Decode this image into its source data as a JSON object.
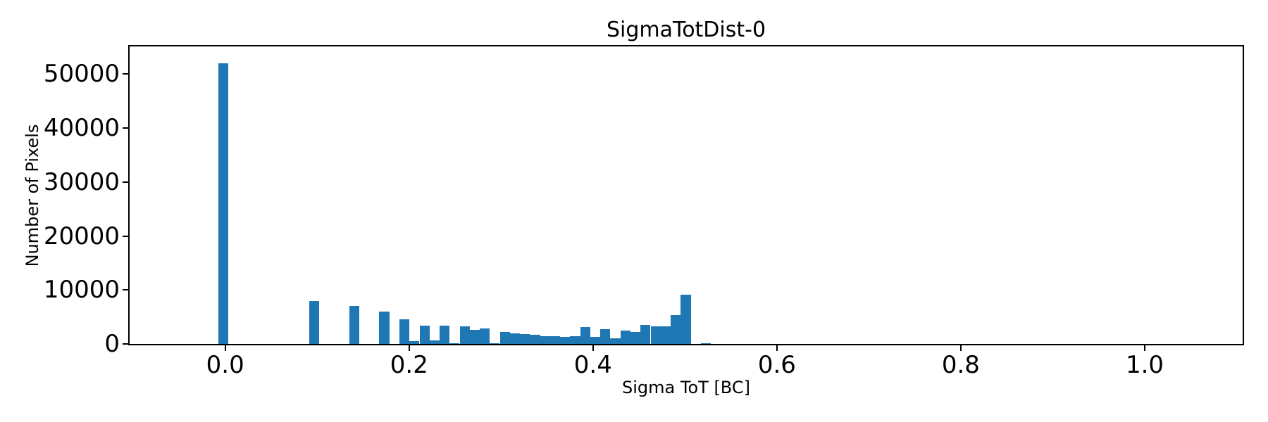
{
  "figure": {
    "title": "SigmaTotDist-0",
    "background_color": "#ffffff",
    "text_color": "#000000"
  },
  "chart_data": {
    "type": "bar",
    "subtype": "histogram",
    "title": "SigmaTotDist-0",
    "xlabel": "Sigma ToT [BC]",
    "ylabel": "Number of Pixels",
    "bar_color": "#1f77b4",
    "axis_color": "#000000",
    "grid": false,
    "legend": null,
    "bin_width": 0.0109,
    "xlim": [
      -0.104,
      1.1065
    ],
    "ylim": [
      0,
      55100
    ],
    "x_ticks": [
      {
        "value": 0.0,
        "label": "0.0"
      },
      {
        "value": 0.2,
        "label": "0.2"
      },
      {
        "value": 0.4,
        "label": "0.4"
      },
      {
        "value": 0.6,
        "label": "0.6"
      },
      {
        "value": 0.8,
        "label": "0.8"
      },
      {
        "value": 1.0,
        "label": "1.0"
      }
    ],
    "y_ticks": [
      {
        "value": 0,
        "label": "0"
      },
      {
        "value": 10000,
        "label": "10000"
      },
      {
        "value": 20000,
        "label": "20000"
      },
      {
        "value": 30000,
        "label": "30000"
      },
      {
        "value": 40000,
        "label": "40000"
      },
      {
        "value": 50000,
        "label": "50000"
      }
    ],
    "bins": [
      {
        "center": -0.002,
        "count": 52000
      },
      {
        "center": 0.0965,
        "count": 7900
      },
      {
        "center": 0.1402,
        "count": 7000
      },
      {
        "center": 0.173,
        "count": 6000
      },
      {
        "center": 0.1948,
        "count": 4600
      },
      {
        "center": 0.2058,
        "count": 500
      },
      {
        "center": 0.2167,
        "count": 3400
      },
      {
        "center": 0.2276,
        "count": 700
      },
      {
        "center": 0.2386,
        "count": 3450
      },
      {
        "center": 0.2495,
        "count": 200
      },
      {
        "center": 0.2604,
        "count": 3200
      },
      {
        "center": 0.2713,
        "count": 2550
      },
      {
        "center": 0.2823,
        "count": 2900
      },
      {
        "center": 0.2932,
        "count": 150
      },
      {
        "center": 0.3041,
        "count": 2200
      },
      {
        "center": 0.3151,
        "count": 1950
      },
      {
        "center": 0.326,
        "count": 1800
      },
      {
        "center": 0.3369,
        "count": 1650
      },
      {
        "center": 0.3478,
        "count": 1500
      },
      {
        "center": 0.3588,
        "count": 1400
      },
      {
        "center": 0.3697,
        "count": 1250
      },
      {
        "center": 0.3806,
        "count": 1400
      },
      {
        "center": 0.3916,
        "count": 3100
      },
      {
        "center": 0.4025,
        "count": 1300
      },
      {
        "center": 0.4134,
        "count": 2800
      },
      {
        "center": 0.4243,
        "count": 1000
      },
      {
        "center": 0.4353,
        "count": 2500
      },
      {
        "center": 0.4462,
        "count": 2250
      },
      {
        "center": 0.4571,
        "count": 3500
      },
      {
        "center": 0.4681,
        "count": 3300
      },
      {
        "center": 0.479,
        "count": 3250
      },
      {
        "center": 0.4899,
        "count": 5300
      },
      {
        "center": 0.5009,
        "count": 9100
      },
      {
        "center": 0.5227,
        "count": 200
      }
    ]
  }
}
